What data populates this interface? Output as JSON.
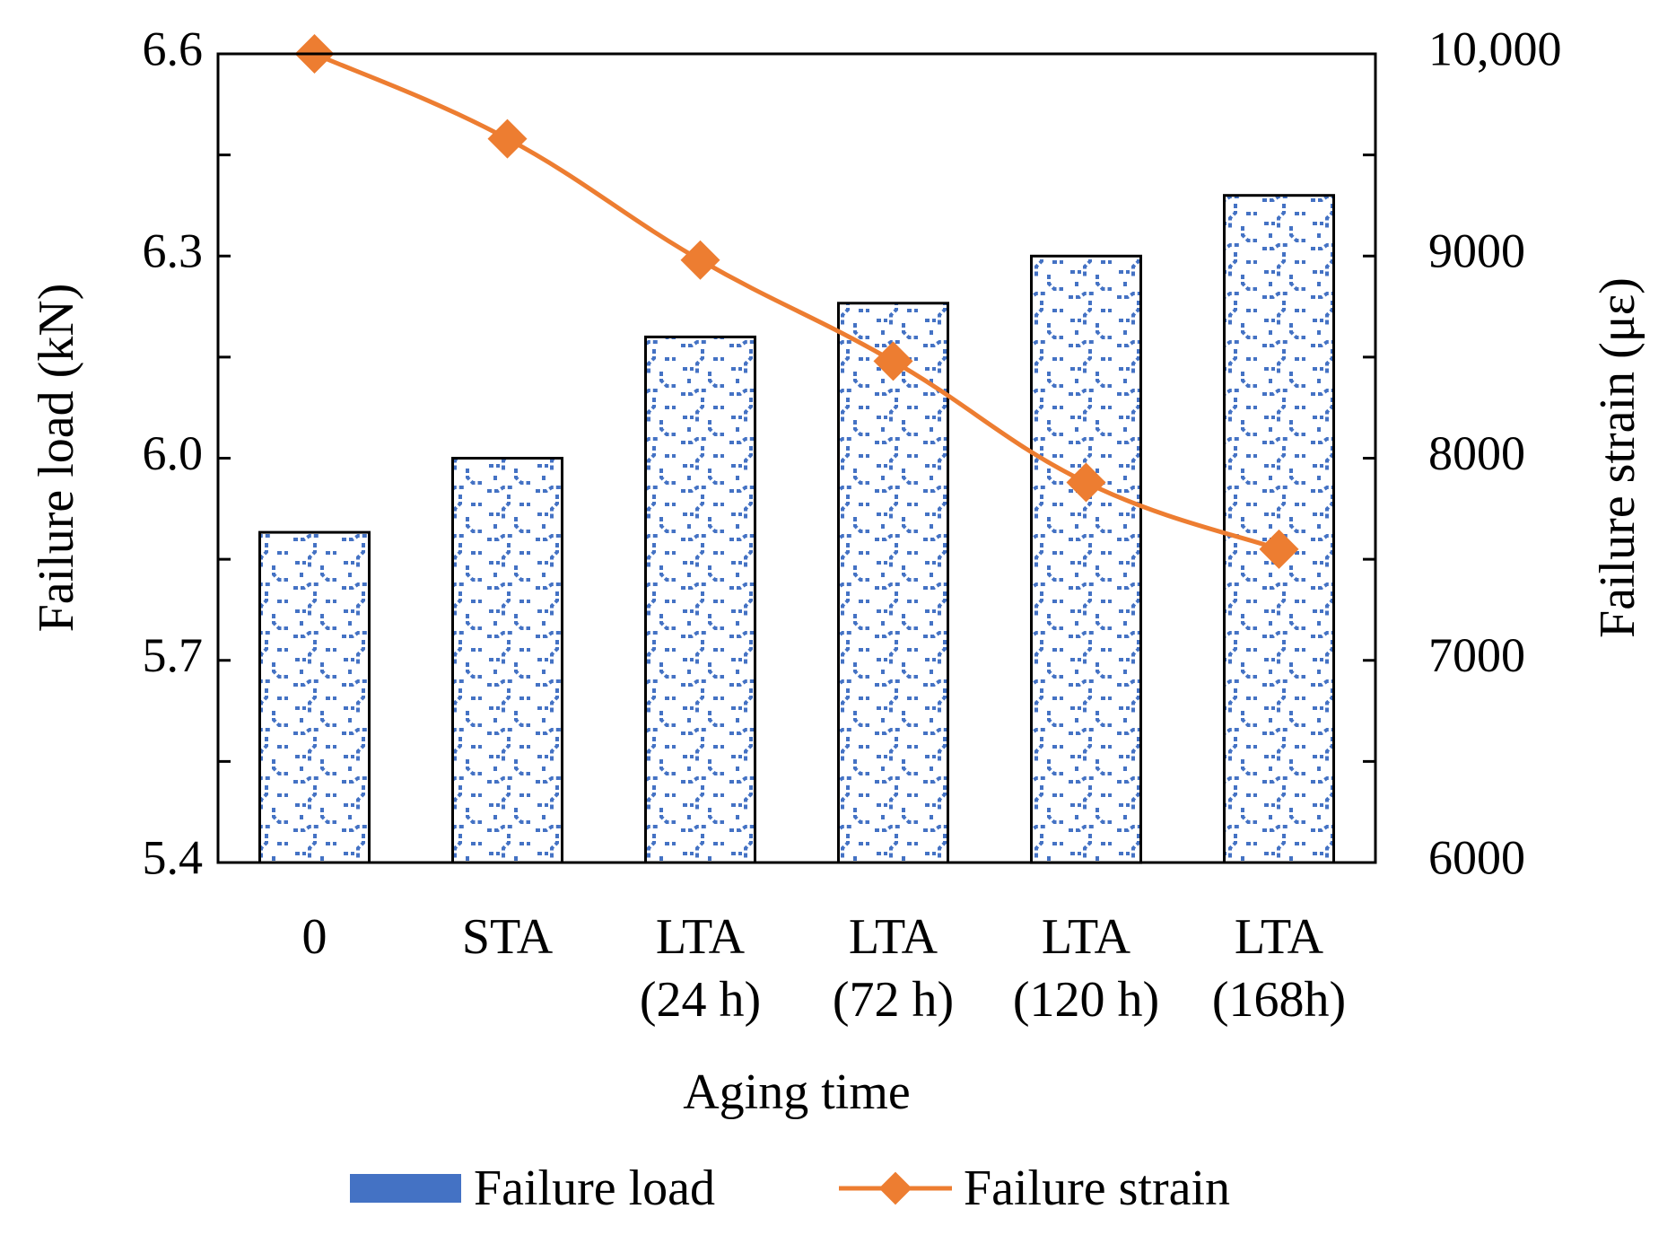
{
  "chart_data": {
    "type": "bar",
    "title": "",
    "xlabel": "Aging time",
    "ylabel": "Failure load (kN)",
    "y2label": "Failure strain (με)",
    "categories": [
      [
        "0"
      ],
      [
        "STA"
      ],
      [
        "LTA",
        "(24 h)"
      ],
      [
        "LTA",
        "(72 h)"
      ],
      [
        "LTA",
        "(120 h)"
      ],
      [
        "LTA",
        "(168h)"
      ]
    ],
    "ylim": [
      5.4,
      6.6
    ],
    "yticks": [
      "5.4",
      "5.7",
      "6.0",
      "6.3",
      "6.6"
    ],
    "y_tick_values": [
      5.4,
      5.7,
      6.0,
      6.3,
      6.6
    ],
    "y2lim": [
      6000,
      10000
    ],
    "y2ticks": [
      "6000",
      "7000",
      "8000",
      "9000",
      "10,000"
    ],
    "y2_tick_values": [
      6000,
      7000,
      8000,
      9000,
      10000
    ],
    "series": [
      {
        "name": "Failure load",
        "type": "bar",
        "axis": "left",
        "color": "#4472C4",
        "values": [
          5.89,
          6.0,
          6.18,
          6.23,
          6.3,
          6.39
        ]
      },
      {
        "name": "Failure strain",
        "type": "line",
        "axis": "right",
        "color": "#ED7D31",
        "marker": "diamond",
        "values": [
          10000,
          9580,
          8980,
          8480,
          7880,
          7550
        ]
      }
    ],
    "legend": {
      "position": "bottom"
    },
    "grid": false
  }
}
